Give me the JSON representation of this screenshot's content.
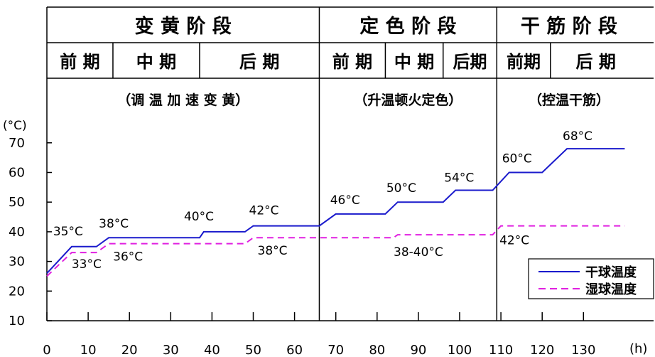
{
  "chart_data": {
    "type": "line",
    "xlabel": "(h)",
    "ylabel": "(°C)",
    "xlim": [
      0,
      140
    ],
    "ylim": [
      10,
      70
    ],
    "x_ticks": [
      0,
      10,
      20,
      30,
      40,
      50,
      60,
      70,
      80,
      90,
      100,
      110,
      120,
      130
    ],
    "y_ticks": [
      10,
      20,
      30,
      40,
      50,
      60,
      70
    ],
    "stages": [
      {
        "name": "变 黄 阶 段",
        "note": "（调 温 加 速 变 黄）",
        "range": [
          0,
          66
        ],
        "subs": [
          {
            "name": "前 期",
            "range": [
              0,
              16
            ]
          },
          {
            "name": "中 期",
            "range": [
              16,
              37
            ]
          },
          {
            "name": "后 期",
            "range": [
              37,
              66
            ]
          }
        ]
      },
      {
        "name": "定 色 阶 段",
        "note": "（升温顿火定色）",
        "range": [
          66,
          109
        ],
        "subs": [
          {
            "name": "前 期",
            "range": [
              66,
              82
            ]
          },
          {
            "name": "中 期",
            "range": [
              82,
              96
            ]
          },
          {
            "name": "后期",
            "range": [
              96,
              109
            ]
          }
        ]
      },
      {
        "name": "干 筋 阶 段",
        "note": "（控温干筋）",
        "range": [
          109,
          144
        ],
        "subs": [
          {
            "name": "前期",
            "range": [
              109,
              122
            ]
          },
          {
            "name": "后 期",
            "range": [
              122,
              144
            ]
          }
        ]
      }
    ],
    "series": [
      {
        "name": "干球温度",
        "style": "solid",
        "color": "#1a1acc",
        "x": [
          0,
          6,
          12,
          15,
          37,
          38,
          48,
          50,
          66,
          70,
          82,
          85,
          96,
          99,
          108,
          112,
          120,
          126,
          140
        ],
        "y": [
          26,
          35,
          35,
          38,
          38,
          40,
          40,
          42,
          42,
          46,
          46,
          50,
          50,
          54,
          54,
          60,
          60,
          68,
          68
        ]
      },
      {
        "name": "湿球温度",
        "style": "dashed",
        "color": "#e020e0",
        "x": [
          0,
          6,
          12,
          15,
          48,
          50,
          84,
          85,
          108,
          110,
          140
        ],
        "y": [
          25,
          33,
          33,
          36,
          36,
          38,
          38,
          39,
          39,
          42,
          42
        ]
      }
    ],
    "annotations": [
      {
        "text": "35°C",
        "x": 6,
        "y": 35,
        "dx": -26,
        "dy": -16
      },
      {
        "text": "38°C",
        "x": 15,
        "y": 38,
        "dx": -14,
        "dy": -14
      },
      {
        "text": "40°C",
        "x": 37,
        "y": 40,
        "dx": -22,
        "dy": -16
      },
      {
        "text": "42°C",
        "x": 50,
        "y": 42,
        "dx": -6,
        "dy": -16
      },
      {
        "text": "46°C",
        "x": 70,
        "y": 46,
        "dx": -8,
        "dy": -14
      },
      {
        "text": "50°C",
        "x": 85,
        "y": 50,
        "dx": -16,
        "dy": -14
      },
      {
        "text": "54°C",
        "x": 99,
        "y": 54,
        "dx": -16,
        "dy": -12
      },
      {
        "text": "60°C",
        "x": 112,
        "y": 60,
        "dx": -10,
        "dy": -14
      },
      {
        "text": "68°C",
        "x": 126,
        "y": 68,
        "dx": -6,
        "dy": -12
      },
      {
        "text": "33°C",
        "x": 6,
        "y": 33,
        "dx": 0,
        "dy": 22
      },
      {
        "text": "36°C",
        "x": 15,
        "y": 36,
        "dx": 6,
        "dy": 24
      },
      {
        "text": "38°C",
        "x": 50,
        "y": 38,
        "dx": 6,
        "dy": 24
      },
      {
        "text": "38-40°C",
        "x": 84,
        "y": 38,
        "dx": 0,
        "dy": 26
      },
      {
        "text": "42°C",
        "x": 110,
        "y": 42,
        "dx": -2,
        "dy": 26
      }
    ],
    "legend_position": "bottom-right",
    "grid": false
  }
}
